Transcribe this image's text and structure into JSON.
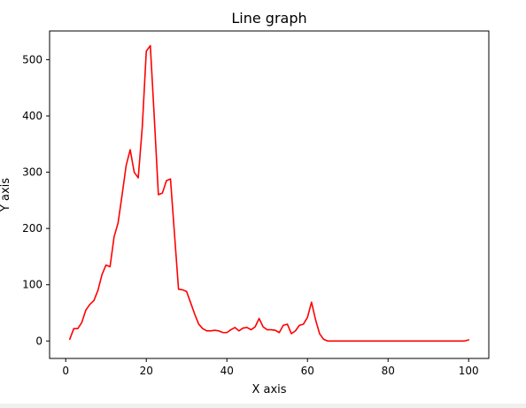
{
  "chart_data": {
    "type": "line",
    "title": "Line graph",
    "xlabel": "X axis",
    "ylabel": "Y axis",
    "xlim": [
      -4,
      105
    ],
    "ylim": [
      -31,
      551
    ],
    "xticks": [
      0,
      20,
      40,
      60,
      80,
      100
    ],
    "yticks": [
      0,
      100,
      200,
      300,
      400,
      500
    ],
    "grid": false,
    "line_color": "#ff0000",
    "series": [
      {
        "x": [
          1,
          2,
          3,
          4,
          5,
          6,
          7,
          8,
          9,
          10,
          11,
          12,
          13,
          14,
          15,
          16,
          17,
          18,
          19,
          20,
          21,
          22,
          23,
          24,
          25,
          26,
          27,
          28,
          29,
          30,
          31,
          32,
          33,
          34,
          35,
          36,
          37,
          38,
          39,
          40,
          41,
          42,
          43,
          44,
          45,
          46,
          47,
          48,
          49,
          50,
          51,
          52,
          53,
          54,
          55,
          56,
          57,
          58,
          59,
          60,
          61,
          62,
          63,
          64,
          65,
          66,
          67,
          68,
          69,
          70,
          71,
          72,
          73,
          74,
          75,
          76,
          77,
          78,
          79,
          80,
          81,
          82,
          83,
          84,
          85,
          86,
          87,
          88,
          89,
          90,
          91,
          92,
          93,
          94,
          95,
          96,
          97,
          98,
          99,
          100
        ],
        "values": [
          3,
          22,
          22,
          33,
          55,
          65,
          72,
          90,
          118,
          135,
          132,
          185,
          210,
          260,
          312,
          340,
          300,
          290,
          380,
          515,
          525,
          395,
          260,
          263,
          285,
          288,
          190,
          92,
          91,
          88,
          68,
          48,
          30,
          22,
          18,
          18,
          19,
          18,
          15,
          15,
          20,
          24,
          18,
          23,
          24,
          20,
          25,
          40,
          25,
          20,
          20,
          19,
          15,
          28,
          30,
          13,
          18,
          28,
          30,
          42,
          69,
          38,
          13,
          3,
          0,
          0,
          0,
          0,
          0,
          0,
          0,
          0,
          0,
          0,
          0,
          0,
          0,
          0,
          0,
          0,
          0,
          0,
          0,
          0,
          0,
          0,
          0,
          0,
          0,
          0,
          0,
          0,
          0,
          0,
          0,
          0,
          0,
          0,
          0,
          2
        ]
      }
    ]
  }
}
